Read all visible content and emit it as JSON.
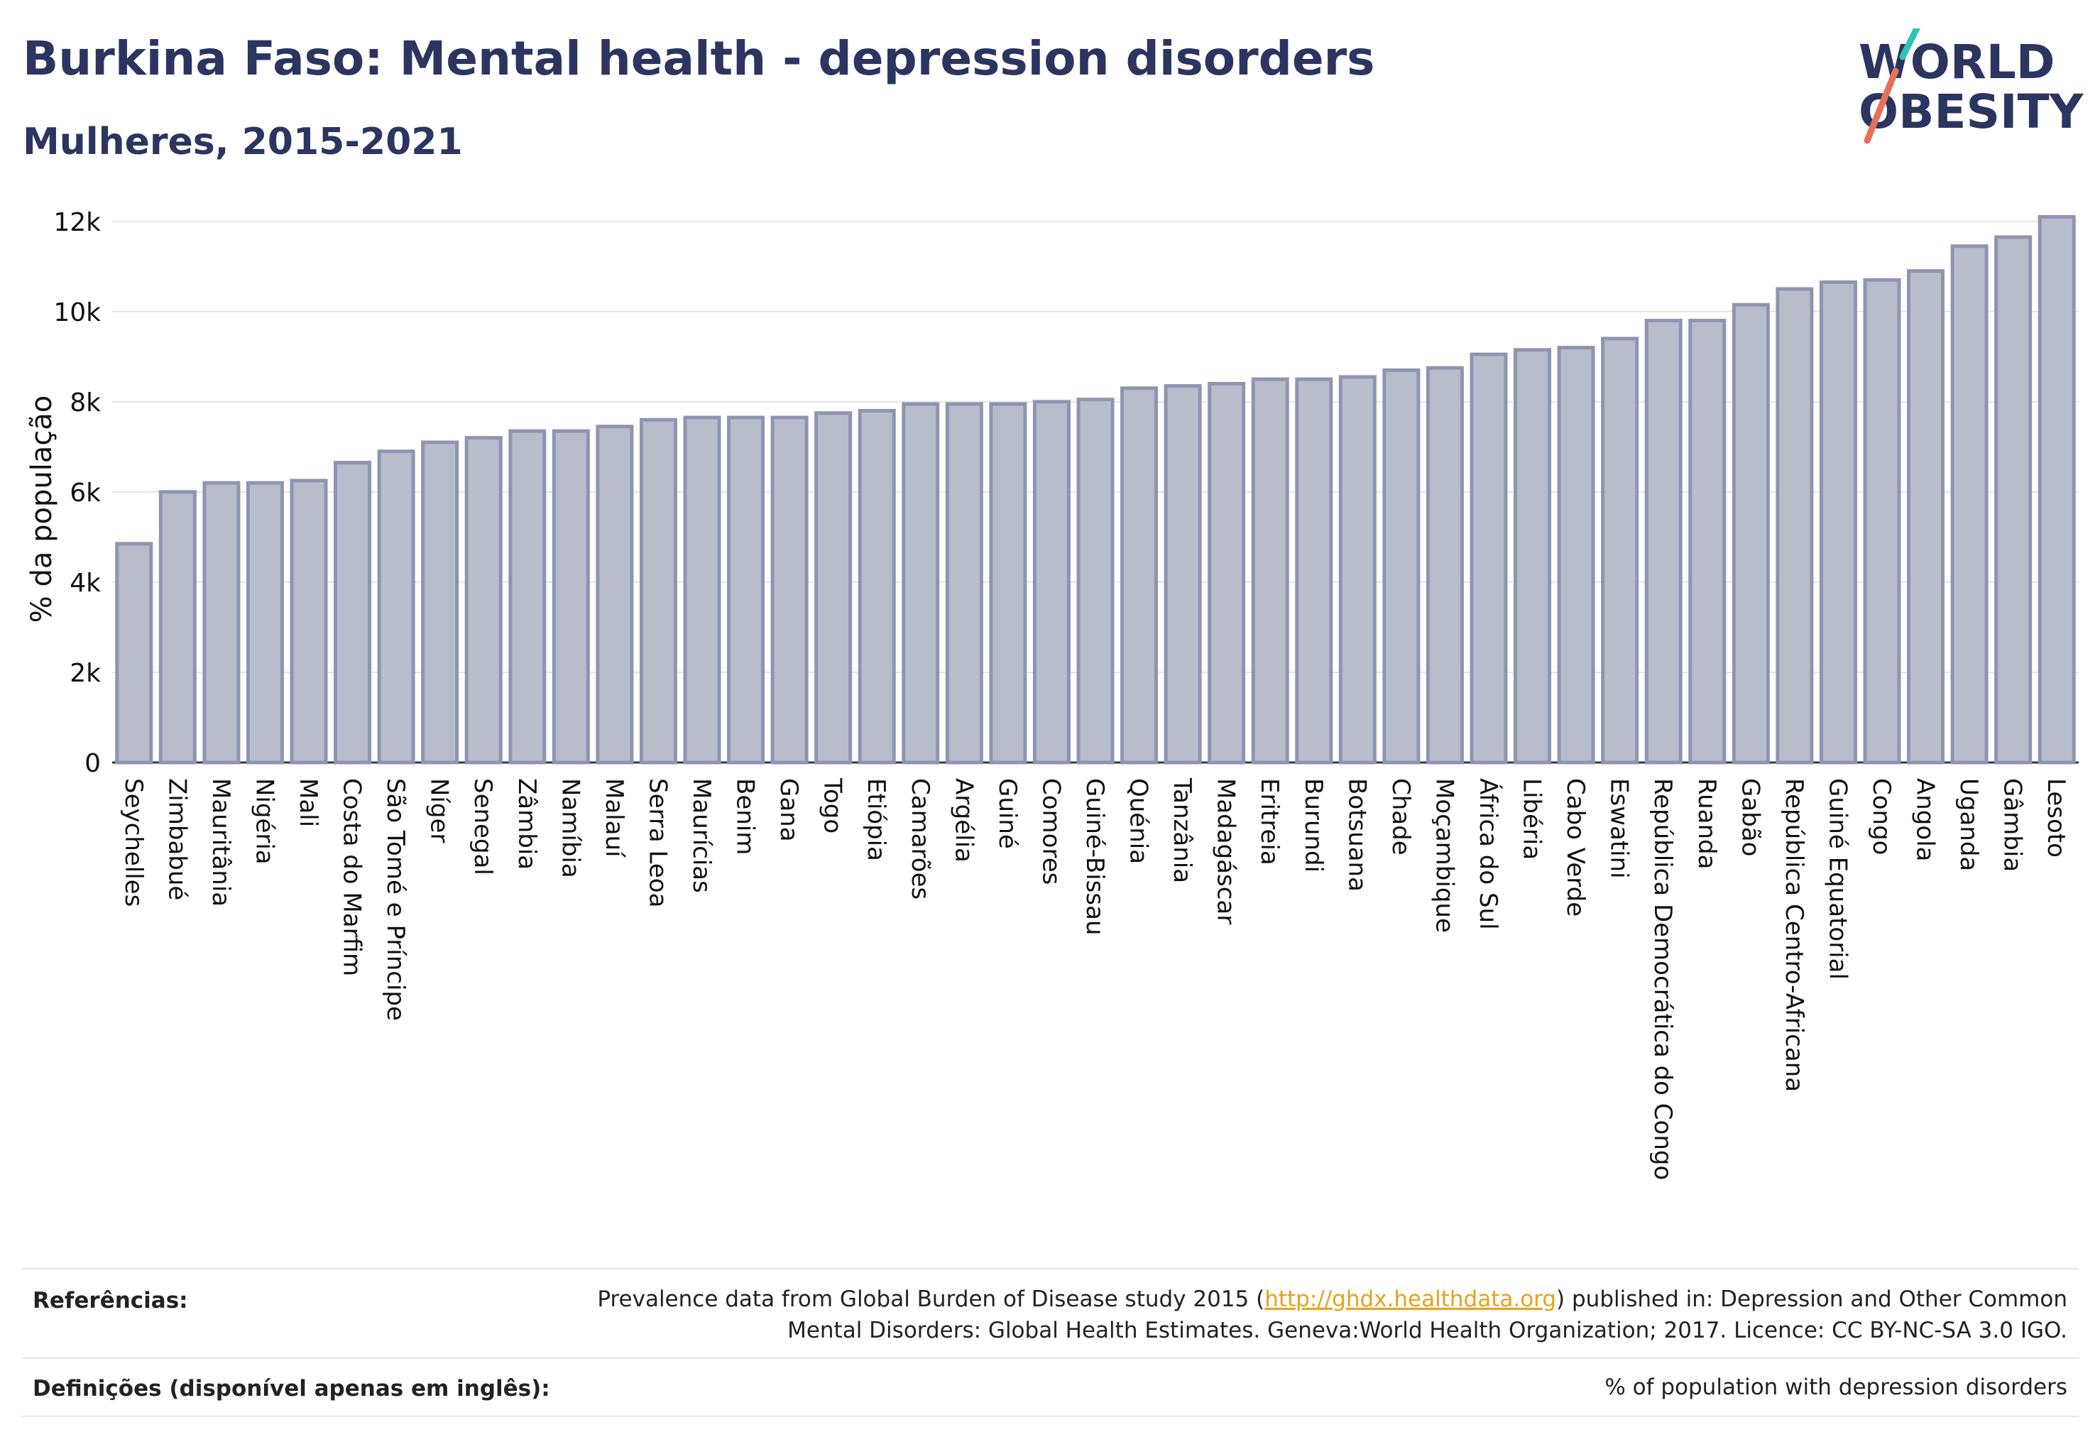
{
  "header": {
    "title": "Burkina Faso: Mental health - depression disorders",
    "subtitle": "Mulheres, 2015-2021"
  },
  "logo": {
    "line1": "WORLD",
    "line2": "OBESITY",
    "accent_colors": [
      "#2ec4b6",
      "#e8705a"
    ]
  },
  "chart_data": {
    "type": "bar",
    "ylabel": "% da população",
    "xlabel": "",
    "ylim": [
      0,
      12500
    ],
    "yticks": [
      0,
      2000,
      4000,
      6000,
      8000,
      10000,
      12000
    ],
    "ytick_labels": [
      "0",
      "2k",
      "4k",
      "6k",
      "8k",
      "10k",
      "12k"
    ],
    "grid": true,
    "bar_color": "#b9bccb",
    "bar_edge_color": "#8e95b0",
    "categories": [
      "Seychelles",
      "Zimbabué",
      "Mauritânia",
      "Nigéria",
      "Mali",
      "Costa do Marfim",
      "São Tomé e Príncipe",
      "Níger",
      "Senegal",
      "Zâmbia",
      "Namíbia",
      "Malauí",
      "Serra Leoa",
      "Maurícias",
      "Benim",
      "Gana",
      "Togo",
      "Etiópia",
      "Camarões",
      "Argélia",
      "Guiné",
      "Comores",
      "Guiné-Bissau",
      "Quénia",
      "Tanzânia",
      "Madagáscar",
      "Eritreia",
      "Burundi",
      "Botsuana",
      "Chade",
      "Moçambique",
      "África do Sul",
      "Libéria",
      "Cabo Verde",
      "Eswatini",
      "República Democrática do Congo",
      "Ruanda",
      "Gabão",
      "República Centro-Africana",
      "Guiné Equatorial",
      "Congo",
      "Angola",
      "Uganda",
      "Gâmbia",
      "Lesoto"
    ],
    "values": [
      4850,
      6000,
      6200,
      6200,
      6250,
      6650,
      6900,
      7100,
      7200,
      7350,
      7350,
      7450,
      7600,
      7650,
      7650,
      7650,
      7750,
      7800,
      7950,
      7950,
      7950,
      8000,
      8050,
      8300,
      8350,
      8400,
      8500,
      8500,
      8550,
      8700,
      8750,
      9050,
      9150,
      9200,
      9400,
      9800,
      9800,
      10150,
      10500,
      10650,
      10700,
      10900,
      11450,
      11650,
      12100
    ]
  },
  "footer": {
    "references_label": "Referências:",
    "references_pre": "Prevalence data from Global Burden of Disease study 2015 (",
    "references_link": "http://ghdx.healthdata.org",
    "references_post": ") published in: Depression and Other Common",
    "references_line2": "Mental Disorders: Global Health Estimates. Geneva:World Health Organization; 2017. Licence: CC BY-NC-SA 3.0 IGO.",
    "definitions_label": "Definições (disponível apenas em inglês):",
    "definitions_text": "% of population with depression disorders"
  }
}
